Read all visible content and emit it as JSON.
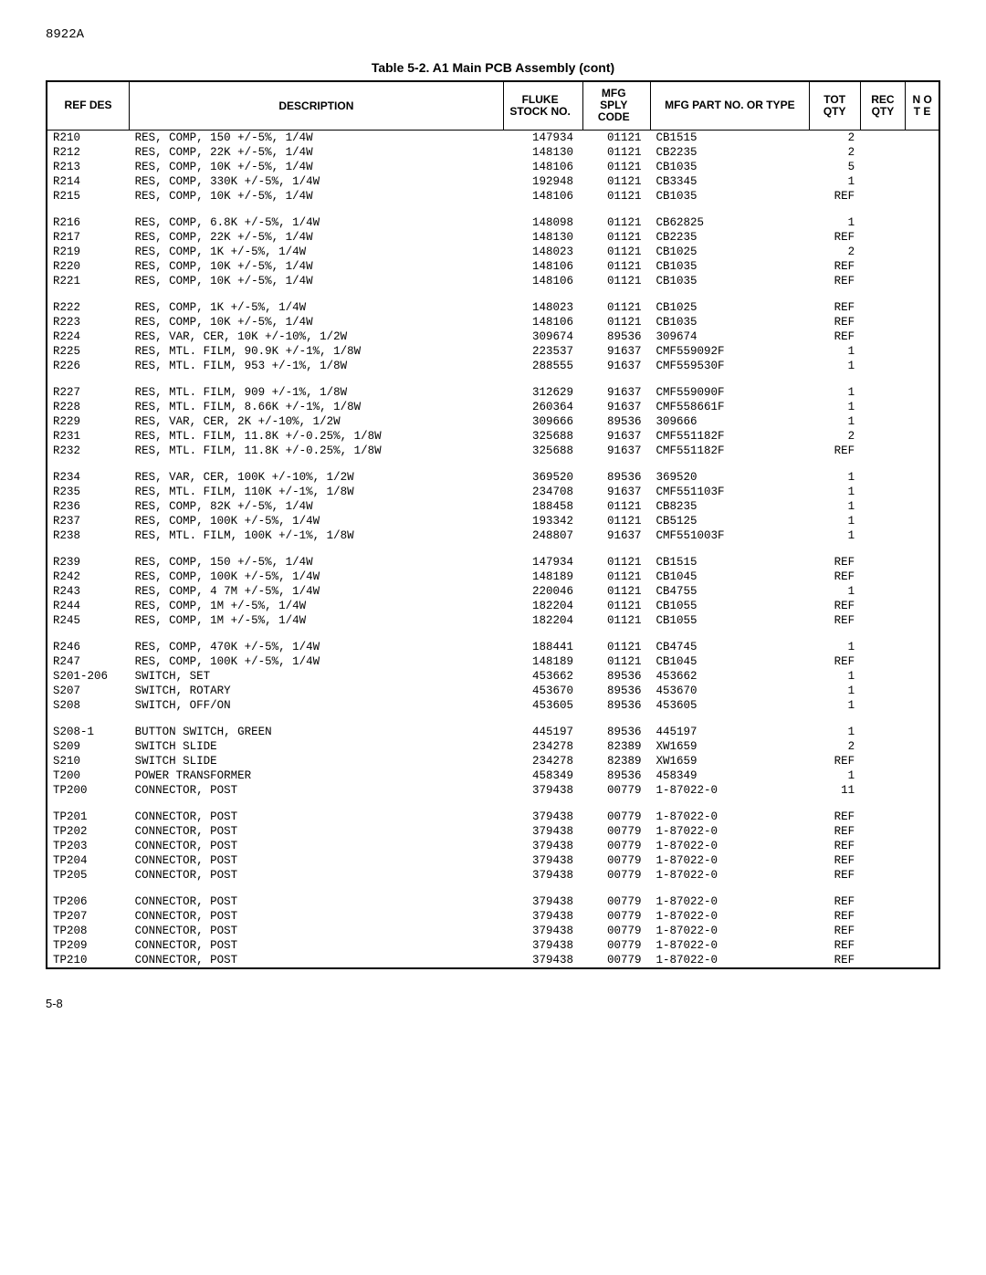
{
  "docId": "8922A",
  "tableTitle": "Table 5-2. A1 Main PCB Assembly (cont)",
  "pageNum": "5-8",
  "headers": {
    "refDes": "REF\nDES",
    "description": "DESCRIPTION",
    "stockNo": "FLUKE\nSTOCK\nNO.",
    "sply": "MFG\nSPLY\nCODE",
    "partNo": "MFG PART NO.\nOR TYPE",
    "totQty": "TOT\nQTY",
    "recQty": "REC\nQTY",
    "note": "N\nO\nT\nE"
  },
  "groups": [
    [
      {
        "ref": "R210",
        "desc": "RES, COMP, 150 +/-5%, 1/4W",
        "stock": "147934",
        "sply": "01121",
        "part": "CB1515",
        "tot": "2"
      },
      {
        "ref": "R212",
        "desc": "RES, COMP, 22K +/-5%, 1/4W",
        "stock": "148130",
        "sply": "01121",
        "part": "CB2235",
        "tot": "2"
      },
      {
        "ref": "R213",
        "desc": "RES, COMP, 10K +/-5%, 1/4W",
        "stock": "148106",
        "sply": "01121",
        "part": "CB1035",
        "tot": "5"
      },
      {
        "ref": "R214",
        "desc": "RES, COMP, 330K +/-5%, 1/4W",
        "stock": "192948",
        "sply": "01121",
        "part": "CB3345",
        "tot": "1"
      },
      {
        "ref": "R215",
        "desc": "RES, COMP, 10K +/-5%, 1/4W",
        "stock": "148106",
        "sply": "01121",
        "part": "CB1035",
        "tot": "REF"
      }
    ],
    [
      {
        "ref": "R216",
        "desc": "RES, COMP, 6.8K +/-5%, 1/4W",
        "stock": "148098",
        "sply": "01121",
        "part": "CB62825",
        "tot": "1"
      },
      {
        "ref": "R217",
        "desc": "RES, COMP, 22K +/-5%, 1/4W",
        "stock": "148130",
        "sply": "01121",
        "part": "CB2235",
        "tot": "REF"
      },
      {
        "ref": "R219",
        "desc": "RES, COMP, 1K +/-5%, 1/4W",
        "stock": "148023",
        "sply": "01121",
        "part": "CB1025",
        "tot": "2"
      },
      {
        "ref": "R220",
        "desc": "RES, COMP, 10K +/-5%, 1/4W",
        "stock": "148106",
        "sply": "01121",
        "part": "CB1035",
        "tot": "REF"
      },
      {
        "ref": "R221",
        "desc": "RES, COMP, 10K +/-5%, 1/4W",
        "stock": "148106",
        "sply": "01121",
        "part": "CB1035",
        "tot": "REF"
      }
    ],
    [
      {
        "ref": "R222",
        "desc": "RES, COMP, 1K +/-5%, 1/4W",
        "stock": "148023",
        "sply": "01121",
        "part": "CB1025",
        "tot": "REF"
      },
      {
        "ref": "R223",
        "desc": "RES, COMP, 10K +/-5%, 1/4W",
        "stock": "148106",
        "sply": "01121",
        "part": "CB1035",
        "tot": "REF"
      },
      {
        "ref": "R224",
        "desc": "RES, VAR, CER, 10K +/-10%, 1/2W",
        "stock": "309674",
        "sply": "89536",
        "part": "309674",
        "tot": "REF"
      },
      {
        "ref": "R225",
        "desc": "RES, MTL. FILM, 90.9K +/-1%, 1/8W",
        "stock": "223537",
        "sply": "91637",
        "part": "CMF559092F",
        "tot": "1"
      },
      {
        "ref": "R226",
        "desc": "RES, MTL. FILM, 953 +/-1%, 1/8W",
        "stock": "288555",
        "sply": "91637",
        "part": "CMF559530F",
        "tot": "1"
      }
    ],
    [
      {
        "ref": "R227",
        "desc": "RES, MTL. FILM, 909 +/-1%, 1/8W",
        "stock": "312629",
        "sply": "91637",
        "part": "CMF559090F",
        "tot": "1"
      },
      {
        "ref": "R228",
        "desc": "RES, MTL. FILM, 8.66K +/-1%, 1/8W",
        "stock": "260364",
        "sply": "91637",
        "part": "CMF558661F",
        "tot": "1"
      },
      {
        "ref": "R229",
        "desc": "RES, VAR, CER, 2K +/-10%, 1/2W",
        "stock": "309666",
        "sply": "89536",
        "part": "309666",
        "tot": "1"
      },
      {
        "ref": "R231",
        "desc": "RES, MTL. FILM, 11.8K +/-0.25%, 1/8W",
        "stock": "325688",
        "sply": "91637",
        "part": "CMF551182F",
        "tot": "2"
      },
      {
        "ref": "R232",
        "desc": "RES, MTL. FILM, 11.8K +/-0.25%, 1/8W",
        "stock": "325688",
        "sply": "91637",
        "part": "CMF551182F",
        "tot": "REF"
      }
    ],
    [
      {
        "ref": "R234",
        "desc": "RES, VAR, CER, 100K +/-10%, 1/2W",
        "stock": "369520",
        "sply": "89536",
        "part": "369520",
        "tot": "1"
      },
      {
        "ref": "R235",
        "desc": "RES, MTL. FILM, 110K +/-1%, 1/8W",
        "stock": "234708",
        "sply": "91637",
        "part": "CMF551103F",
        "tot": "1"
      },
      {
        "ref": "R236",
        "desc": "RES, COMP, 82K +/-5%, 1/4W",
        "stock": "188458",
        "sply": "01121",
        "part": "CB8235",
        "tot": "1"
      },
      {
        "ref": "R237",
        "desc": "RES, COMP, 100K +/-5%, 1/4W",
        "stock": "193342",
        "sply": "01121",
        "part": "CB5125",
        "tot": "1"
      },
      {
        "ref": "R238",
        "desc": "RES, MTL. FILM, 100K +/-1%, 1/8W",
        "stock": "248807",
        "sply": "91637",
        "part": "CMF551003F",
        "tot": "1"
      }
    ],
    [
      {
        "ref": "R239",
        "desc": "RES, COMP, 150 +/-5%, 1/4W",
        "stock": "147934",
        "sply": "01121",
        "part": "CB1515",
        "tot": "REF"
      },
      {
        "ref": "R242",
        "desc": "RES, COMP, 100K +/-5%, 1/4W",
        "stock": "148189",
        "sply": "01121",
        "part": "CB1045",
        "tot": "REF"
      },
      {
        "ref": "R243",
        "desc": "RES, COMP, 4 7M +/-5%, 1/4W",
        "stock": "220046",
        "sply": "01121",
        "part": "CB4755",
        "tot": "1"
      },
      {
        "ref": "R244",
        "desc": "RES, COMP, 1M +/-5%, 1/4W",
        "stock": "182204",
        "sply": "01121",
        "part": "CB1055",
        "tot": "REF"
      },
      {
        "ref": "R245",
        "desc": "RES, COMP, 1M +/-5%, 1/4W",
        "stock": "182204",
        "sply": "01121",
        "part": "CB1055",
        "tot": "REF"
      }
    ],
    [
      {
        "ref": "R246",
        "desc": "RES, COMP, 470K +/-5%, 1/4W",
        "stock": "188441",
        "sply": "01121",
        "part": "CB4745",
        "tot": "1"
      },
      {
        "ref": "R247",
        "desc": "RES, COMP, 100K +/-5%, 1/4W",
        "stock": "148189",
        "sply": "01121",
        "part": "CB1045",
        "tot": "REF"
      },
      {
        "ref": "S201-206",
        "desc": "SWITCH, SET",
        "stock": "453662",
        "sply": "89536",
        "part": "453662",
        "tot": "1"
      },
      {
        "ref": "S207",
        "desc": "SWITCH, ROTARY",
        "stock": "453670",
        "sply": "89536",
        "part": "453670",
        "tot": "1"
      },
      {
        "ref": "S208",
        "desc": "SWITCH, OFF/ON",
        "stock": "453605",
        "sply": "89536",
        "part": "453605",
        "tot": "1"
      }
    ],
    [
      {
        "ref": "S208-1",
        "desc": "BUTTON SWITCH, GREEN",
        "stock": "445197",
        "sply": "89536",
        "part": "445197",
        "tot": "1"
      },
      {
        "ref": "S209",
        "desc": "SWITCH SLIDE",
        "stock": "234278",
        "sply": "82389",
        "part": "XW1659",
        "tot": "2"
      },
      {
        "ref": "S210",
        "desc": "SWITCH SLIDE",
        "stock": "234278",
        "sply": "82389",
        "part": "XW1659",
        "tot": "REF"
      },
      {
        "ref": "T200",
        "desc": "POWER TRANSFORMER",
        "stock": "458349",
        "sply": "89536",
        "part": "458349",
        "tot": "1"
      },
      {
        "ref": "TP200",
        "desc": "CONNECTOR, POST",
        "stock": "379438",
        "sply": "00779",
        "part": "1-87022-0",
        "tot": "11"
      }
    ],
    [
      {
        "ref": "TP201",
        "desc": "CONNECTOR, POST",
        "stock": "379438",
        "sply": "00779",
        "part": "1-87022-0",
        "tot": "REF"
      },
      {
        "ref": "TP202",
        "desc": "CONNECTOR, POST",
        "stock": "379438",
        "sply": "00779",
        "part": "1-87022-0",
        "tot": "REF"
      },
      {
        "ref": "TP203",
        "desc": "CONNECTOR, POST",
        "stock": "379438",
        "sply": "00779",
        "part": "1-87022-0",
        "tot": "REF"
      },
      {
        "ref": "TP204",
        "desc": "CONNECTOR, POST",
        "stock": "379438",
        "sply": "00779",
        "part": "1-87022-0",
        "tot": "REF"
      },
      {
        "ref": "TP205",
        "desc": "CONNECTOR, POST",
        "stock": "379438",
        "sply": "00779",
        "part": "1-87022-0",
        "tot": "REF"
      }
    ],
    [
      {
        "ref": "TP206",
        "desc": "CONNECTOR, POST",
        "stock": "379438",
        "sply": "00779",
        "part": "1-87022-0",
        "tot": "REF"
      },
      {
        "ref": "TP207",
        "desc": "CONNECTOR, POST",
        "stock": "379438",
        "sply": "00779",
        "part": "1-87022-0",
        "tot": "REF"
      },
      {
        "ref": "TP208",
        "desc": "CONNECTOR, POST",
        "stock": "379438",
        "sply": "00779",
        "part": "1-87022-0",
        "tot": "REF"
      },
      {
        "ref": "TP209",
        "desc": "CONNECTOR, POST",
        "stock": "379438",
        "sply": "00779",
        "part": "1-87022-0",
        "tot": "REF"
      },
      {
        "ref": "TP210",
        "desc": "CONNECTOR, POST",
        "stock": "379438",
        "sply": "00779",
        "part": "1-87022-0",
        "tot": "REF"
      }
    ]
  ]
}
